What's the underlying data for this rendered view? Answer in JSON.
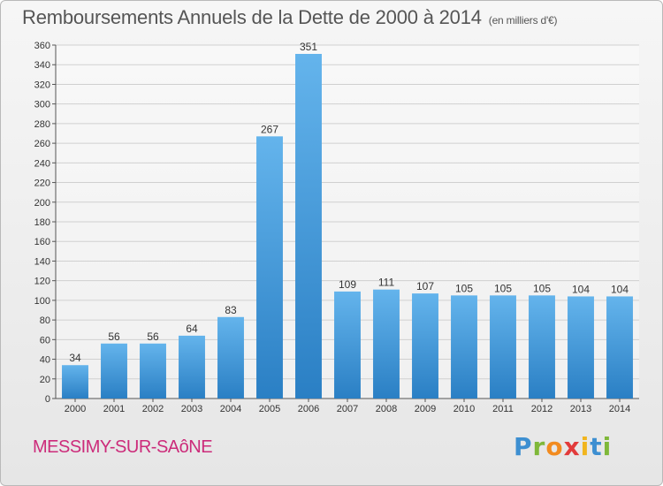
{
  "header": {
    "title": "Remboursements Annuels de la Dette de 2000 à 2014",
    "subtitle": "(en milliers d'€)"
  },
  "footer": {
    "commune": "MESSIMY-SUR-SAôNE",
    "logo_text": "Proxiti"
  },
  "colors": {
    "bar_top": "#64b4ec",
    "bar_bottom": "#2a7fc4",
    "commune": "#cc2b7a",
    "title": "#555555"
  },
  "chart_data": {
    "type": "bar",
    "categories": [
      "2000",
      "2001",
      "2002",
      "2003",
      "2004",
      "2005",
      "2006",
      "2007",
      "2008",
      "2009",
      "2010",
      "2011",
      "2012",
      "2013",
      "2014"
    ],
    "values": [
      34,
      56,
      56,
      64,
      83,
      267,
      351,
      109,
      111,
      107,
      105,
      105,
      105,
      104,
      104
    ],
    "title": "Remboursements Annuels de la Dette de 2000 à 2014",
    "xlabel": "",
    "ylabel": "",
    "ylim": [
      0,
      360
    ],
    "yticks": [
      0,
      20,
      40,
      60,
      80,
      100,
      120,
      140,
      160,
      180,
      200,
      220,
      240,
      260,
      280,
      300,
      320,
      340,
      360
    ],
    "grid": true,
    "data_labels": true
  }
}
